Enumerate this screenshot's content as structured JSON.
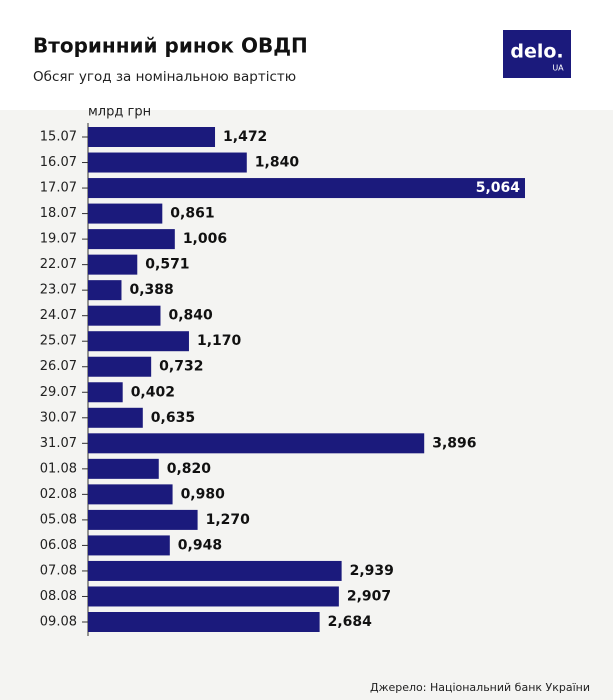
{
  "chart_data": {
    "type": "hbar",
    "title": "Вторинний ринок ОВДП",
    "subtitle": "Обсяг угод за номінальною вартістю",
    "unit_label": "млрд грн",
    "source": "Джерело: Національний банк України",
    "categories": [
      "15.07",
      "16.07",
      "17.07",
      "18.07",
      "19.07",
      "22.07",
      "23.07",
      "24.07",
      "25.07",
      "26.07",
      "29.07",
      "30.07",
      "31.07",
      "01.08",
      "02.08",
      "05.08",
      "06.08",
      "07.08",
      "08.08",
      "09.08"
    ],
    "values": [
      1.472,
      1.84,
      5.064,
      0.861,
      1.006,
      0.571,
      0.388,
      0.84,
      1.17,
      0.732,
      0.402,
      0.635,
      3.896,
      0.82,
      0.98,
      1.27,
      0.948,
      2.939,
      2.907,
      2.684
    ],
    "value_labels": [
      "1,472",
      "1,840",
      "5,064",
      "0,861",
      "1,006",
      "0,571",
      "0,388",
      "0,840",
      "1,170",
      "0,732",
      "0,402",
      "0,635",
      "3,896",
      "0,820",
      "0,980",
      "1,270",
      "0,948",
      "2,939",
      "2,907",
      "2,684"
    ],
    "color": "#1b1a7c"
  },
  "logo": {
    "text": "delo.",
    "sub": "UA"
  }
}
